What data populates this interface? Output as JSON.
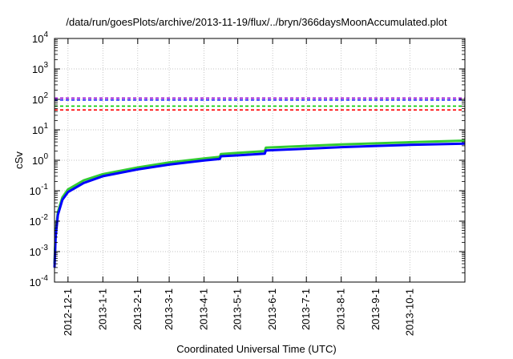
{
  "chart_data": {
    "type": "line",
    "title": "/data/run/goesPlots/archive/2013-11-19/flux/../bryn/366daysMoonAccumulated.plot",
    "xlabel": "Coordinated Universal Time (UTC)",
    "ylabel": "cSv",
    "yscale": "log",
    "ylim": [
      0.0001,
      10000
    ],
    "xlim": [
      "2012-11-19",
      "2013-11-19"
    ],
    "grid": true,
    "x_ticks": [
      "2012-12-1",
      "2013-1-1",
      "2013-2-1",
      "2013-3-1",
      "2013-4-1",
      "2013-5-1",
      "2013-6-1",
      "2013-7-1",
      "2013-8-1",
      "2013-9-1",
      "2013-10-1"
    ],
    "y_ticks": [
      {
        "value": 0.0001,
        "base": "10",
        "exp": "-4"
      },
      {
        "value": 0.001,
        "base": "10",
        "exp": "-3"
      },
      {
        "value": 0.01,
        "base": "10",
        "exp": "-2"
      },
      {
        "value": 0.1,
        "base": "10",
        "exp": "-1"
      },
      {
        "value": 1,
        "base": "10",
        "exp": "0"
      },
      {
        "value": 10,
        "base": "10",
        "exp": "1"
      },
      {
        "value": 100,
        "base": "10",
        "exp": "2"
      },
      {
        "value": 1000,
        "base": "10",
        "exp": "3"
      },
      {
        "value": 10000,
        "base": "10",
        "exp": "4"
      }
    ],
    "reference_lines": [
      {
        "value": 110,
        "color": "#9400d3",
        "style": "dashed"
      },
      {
        "value": 95,
        "color": "#2020ff",
        "style": "dashed"
      },
      {
        "value": 60,
        "color": "#00cc00",
        "style": "dashed"
      },
      {
        "value": 45,
        "color": "#ff0000",
        "style": "dashed"
      }
    ],
    "series": [
      {
        "color": "#33cc33",
        "points": [
          [
            "2012-11-19",
            0.0004
          ],
          [
            "2012-11-20",
            0.004
          ],
          [
            "2012-11-22",
            0.02
          ],
          [
            "2012-11-26",
            0.06
          ],
          [
            "2012-12-01",
            0.11
          ],
          [
            "2012-12-15",
            0.22
          ],
          [
            "2013-01-01",
            0.35
          ],
          [
            "2013-02-01",
            0.58
          ],
          [
            "2013-03-01",
            0.85
          ],
          [
            "2013-04-01",
            1.15
          ],
          [
            "2013-04-15",
            1.3
          ],
          [
            "2013-04-16",
            1.6
          ],
          [
            "2013-05-01",
            1.75
          ],
          [
            "2013-05-25",
            2.0
          ],
          [
            "2013-05-26",
            2.6
          ],
          [
            "2013-06-01",
            2.65
          ],
          [
            "2013-07-01",
            2.95
          ],
          [
            "2013-08-01",
            3.3
          ],
          [
            "2013-09-01",
            3.6
          ],
          [
            "2013-10-01",
            3.9
          ],
          [
            "2013-11-19",
            4.4
          ]
        ]
      },
      {
        "color": "#0000ff",
        "points": [
          [
            "2012-11-19",
            0.0003
          ],
          [
            "2012-11-20",
            0.003
          ],
          [
            "2012-11-22",
            0.016
          ],
          [
            "2012-11-26",
            0.05
          ],
          [
            "2012-12-01",
            0.09
          ],
          [
            "2012-12-15",
            0.18
          ],
          [
            "2013-01-01",
            0.3
          ],
          [
            "2013-02-01",
            0.5
          ],
          [
            "2013-03-01",
            0.72
          ],
          [
            "2013-04-01",
            0.98
          ],
          [
            "2013-04-15",
            1.1
          ],
          [
            "2013-04-16",
            1.35
          ],
          [
            "2013-05-01",
            1.45
          ],
          [
            "2013-05-25",
            1.65
          ],
          [
            "2013-05-26",
            2.1
          ],
          [
            "2013-06-01",
            2.15
          ],
          [
            "2013-07-01",
            2.4
          ],
          [
            "2013-08-01",
            2.7
          ],
          [
            "2013-09-01",
            2.95
          ],
          [
            "2013-10-01",
            3.2
          ],
          [
            "2013-11-19",
            3.5
          ]
        ]
      }
    ]
  }
}
